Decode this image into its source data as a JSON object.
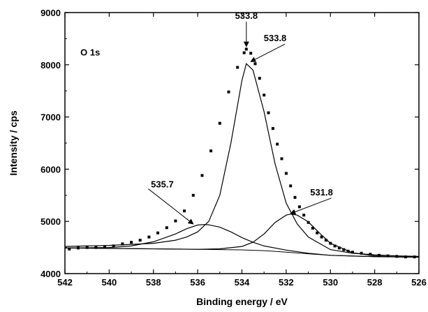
{
  "chart_data": {
    "type": "scatter",
    "xlabel": "Binding energy / eV",
    "ylabel": "Intensity / cps",
    "xlim": [
      542,
      526
    ],
    "ylim": [
      4000,
      9000
    ],
    "x_reversed": true,
    "grid": false,
    "x_ticks": [
      "542",
      "540",
      "538",
      "536",
      "534",
      "532",
      "530",
      "528",
      "526"
    ],
    "y_ticks": [
      "4000",
      "5000",
      "6000",
      "7000",
      "8000",
      "9000"
    ],
    "panel_label": "O 1s",
    "baseline": {
      "x": [
        542,
        540,
        538,
        537,
        536,
        535,
        534,
        533,
        532,
        531,
        530,
        529,
        528,
        527,
        526
      ],
      "y": [
        4490,
        4485,
        4475,
        4470,
        4465,
        4460,
        4455,
        4440,
        4410,
        4380,
        4350,
        4335,
        4325,
        4320,
        4315
      ]
    },
    "components": [
      {
        "center": 533.8,
        "height": 3560,
        "fwhm": 2.5,
        "x": [
          542,
          540,
          538,
          537,
          536.5,
          536,
          535.5,
          535,
          534.5,
          534,
          533.8,
          533.5,
          533,
          532.5,
          532,
          531.5,
          531,
          530,
          529,
          528,
          527,
          526
        ],
        "y": [
          4520,
          4540,
          4580,
          4640,
          4700,
          4800,
          5000,
          5500,
          6500,
          7700,
          8020,
          7900,
          7100,
          6100,
          5350,
          4950,
          4700,
          4460,
          4390,
          4360,
          4340,
          4330
        ]
      },
      {
        "center": 535.7,
        "height": 480,
        "fwhm": 2.8,
        "x": [
          542,
          540,
          539,
          538,
          537,
          536.5,
          536,
          535.7,
          535.5,
          535,
          534.5,
          534,
          533.5,
          533,
          532,
          531,
          530,
          528,
          526
        ],
        "y": [
          4490,
          4500,
          4530,
          4610,
          4760,
          4860,
          4930,
          4940,
          4935,
          4890,
          4800,
          4690,
          4600,
          4530,
          4450,
          4390,
          4350,
          4325,
          4315
        ]
      },
      {
        "center": 531.8,
        "height": 700,
        "fwhm": 2.2,
        "x": [
          542,
          536,
          535,
          534,
          533.5,
          533,
          532.5,
          532,
          531.8,
          531.5,
          531,
          530.5,
          530,
          529,
          528,
          527,
          526
        ],
        "y": [
          4490,
          4465,
          4475,
          4520,
          4600,
          4760,
          4980,
          5120,
          5140,
          5120,
          4990,
          4780,
          4580,
          4400,
          4340,
          4320,
          4315
        ]
      }
    ],
    "data_points": {
      "x": [
        541.8,
        541.4,
        541.0,
        540.6,
        540.2,
        539.8,
        539.4,
        539.0,
        538.6,
        538.2,
        537.8,
        537.4,
        537.0,
        536.6,
        536.2,
        535.8,
        535.4,
        535.0,
        534.6,
        534.2,
        533.9,
        533.8,
        533.6,
        533.4,
        533.2,
        533.0,
        532.8,
        532.6,
        532.4,
        532.2,
        532.0,
        531.8,
        531.6,
        531.4,
        531.2,
        531.0,
        530.8,
        530.6,
        530.4,
        530.2,
        530.0,
        529.8,
        529.6,
        529.4,
        529.2,
        529.0,
        528.6,
        528.2,
        527.8,
        527.4,
        527.0,
        526.6,
        526.2
      ],
      "y": [
        4470,
        4490,
        4500,
        4500,
        4510,
        4530,
        4570,
        4600,
        4640,
        4700,
        4780,
        4880,
        5010,
        5200,
        5500,
        5880,
        6350,
        6880,
        7480,
        7950,
        8230,
        8300,
        8220,
        8020,
        7740,
        7420,
        7080,
        6780,
        6480,
        6200,
        5920,
        5680,
        5460,
        5280,
        5120,
        4980,
        4870,
        4780,
        4700,
        4640,
        4580,
        4530,
        4490,
        4460,
        4430,
        4410,
        4390,
        4370,
        4350,
        4340,
        4330,
        4320,
        4320
      ]
    },
    "annotations": [
      {
        "text": "533.8",
        "label_x": 533.8,
        "label_y": 8880,
        "arrow_to_x": 533.8,
        "arrow_to_y": 8350
      },
      {
        "text": "533.8",
        "label_x": 532.5,
        "label_y": 8450,
        "arrow_to_x": 533.6,
        "arrow_to_y": 8060
      },
      {
        "text": "535.7",
        "label_x": 537.6,
        "label_y": 5650,
        "arrow_to_x": 536.2,
        "arrow_to_y": 4950
      },
      {
        "text": "531.8",
        "label_x": 530.4,
        "label_y": 5500,
        "arrow_to_x": 531.8,
        "arrow_to_y": 5150
      }
    ]
  }
}
